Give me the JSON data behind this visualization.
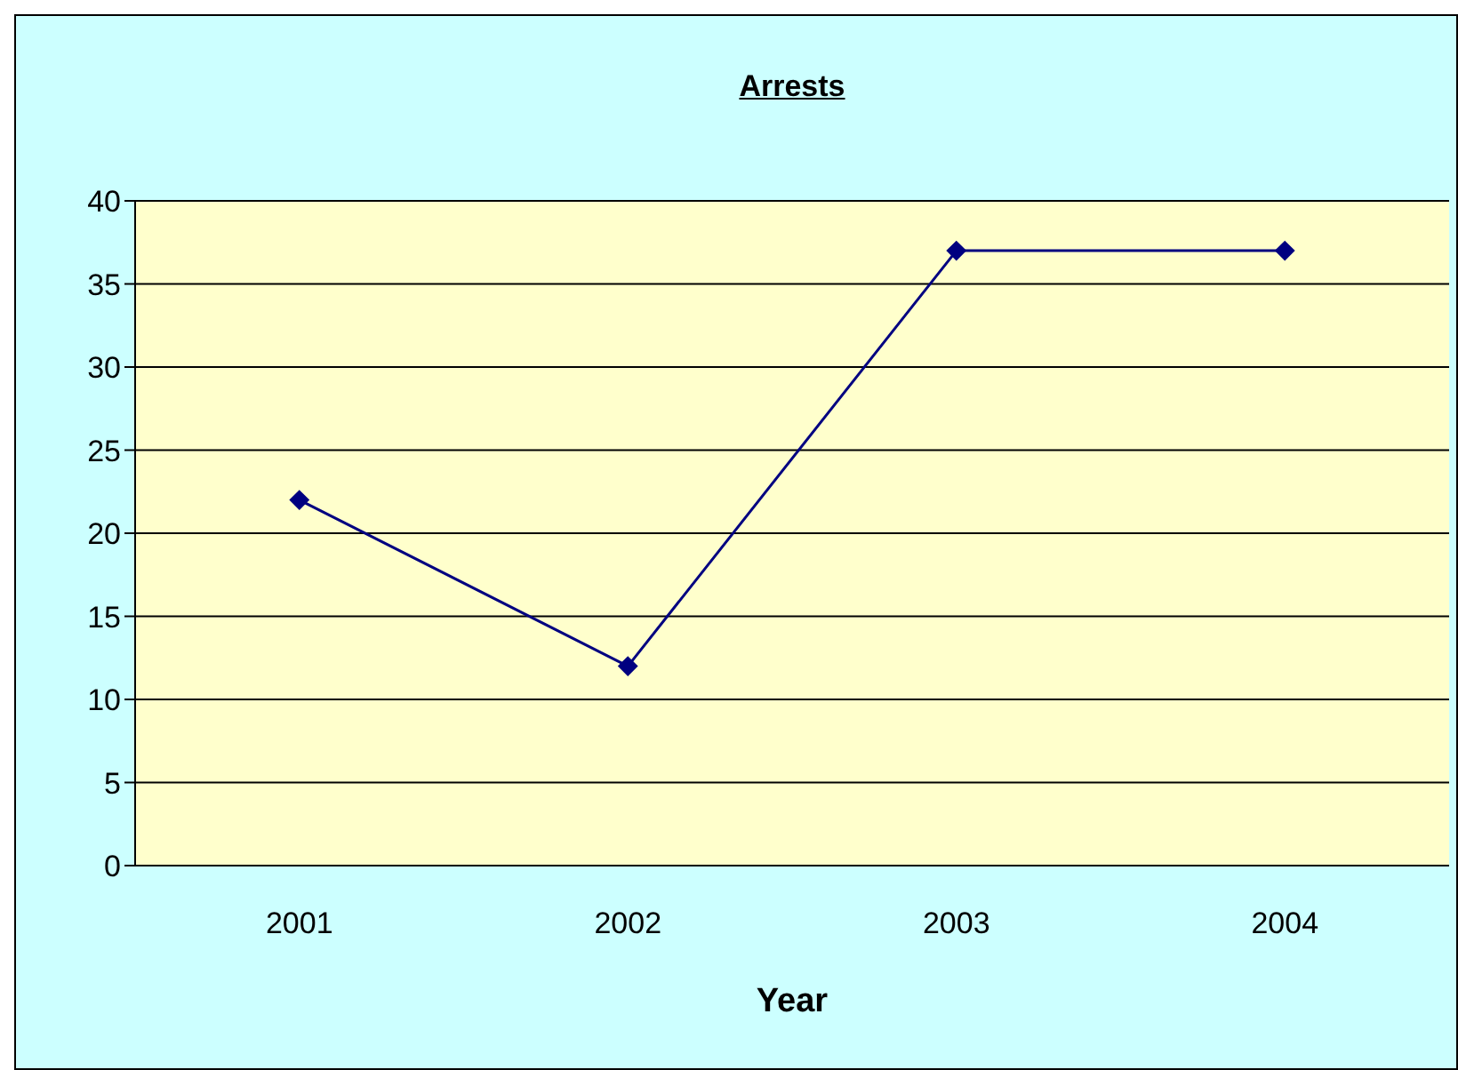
{
  "chart_data": {
    "type": "line",
    "title": "Arrests",
    "xlabel": "Year",
    "categories": [
      "2001",
      "2002",
      "2003",
      "2004"
    ],
    "series": [
      {
        "color": "#000080",
        "values": [
          22,
          12,
          37,
          37
        ]
      }
    ],
    "ylim": [
      0,
      40
    ],
    "yticks": [
      0,
      5,
      10,
      15,
      20,
      25,
      30,
      35,
      40
    ],
    "grid": "y",
    "marker": "diamond",
    "line_style": "solid"
  }
}
